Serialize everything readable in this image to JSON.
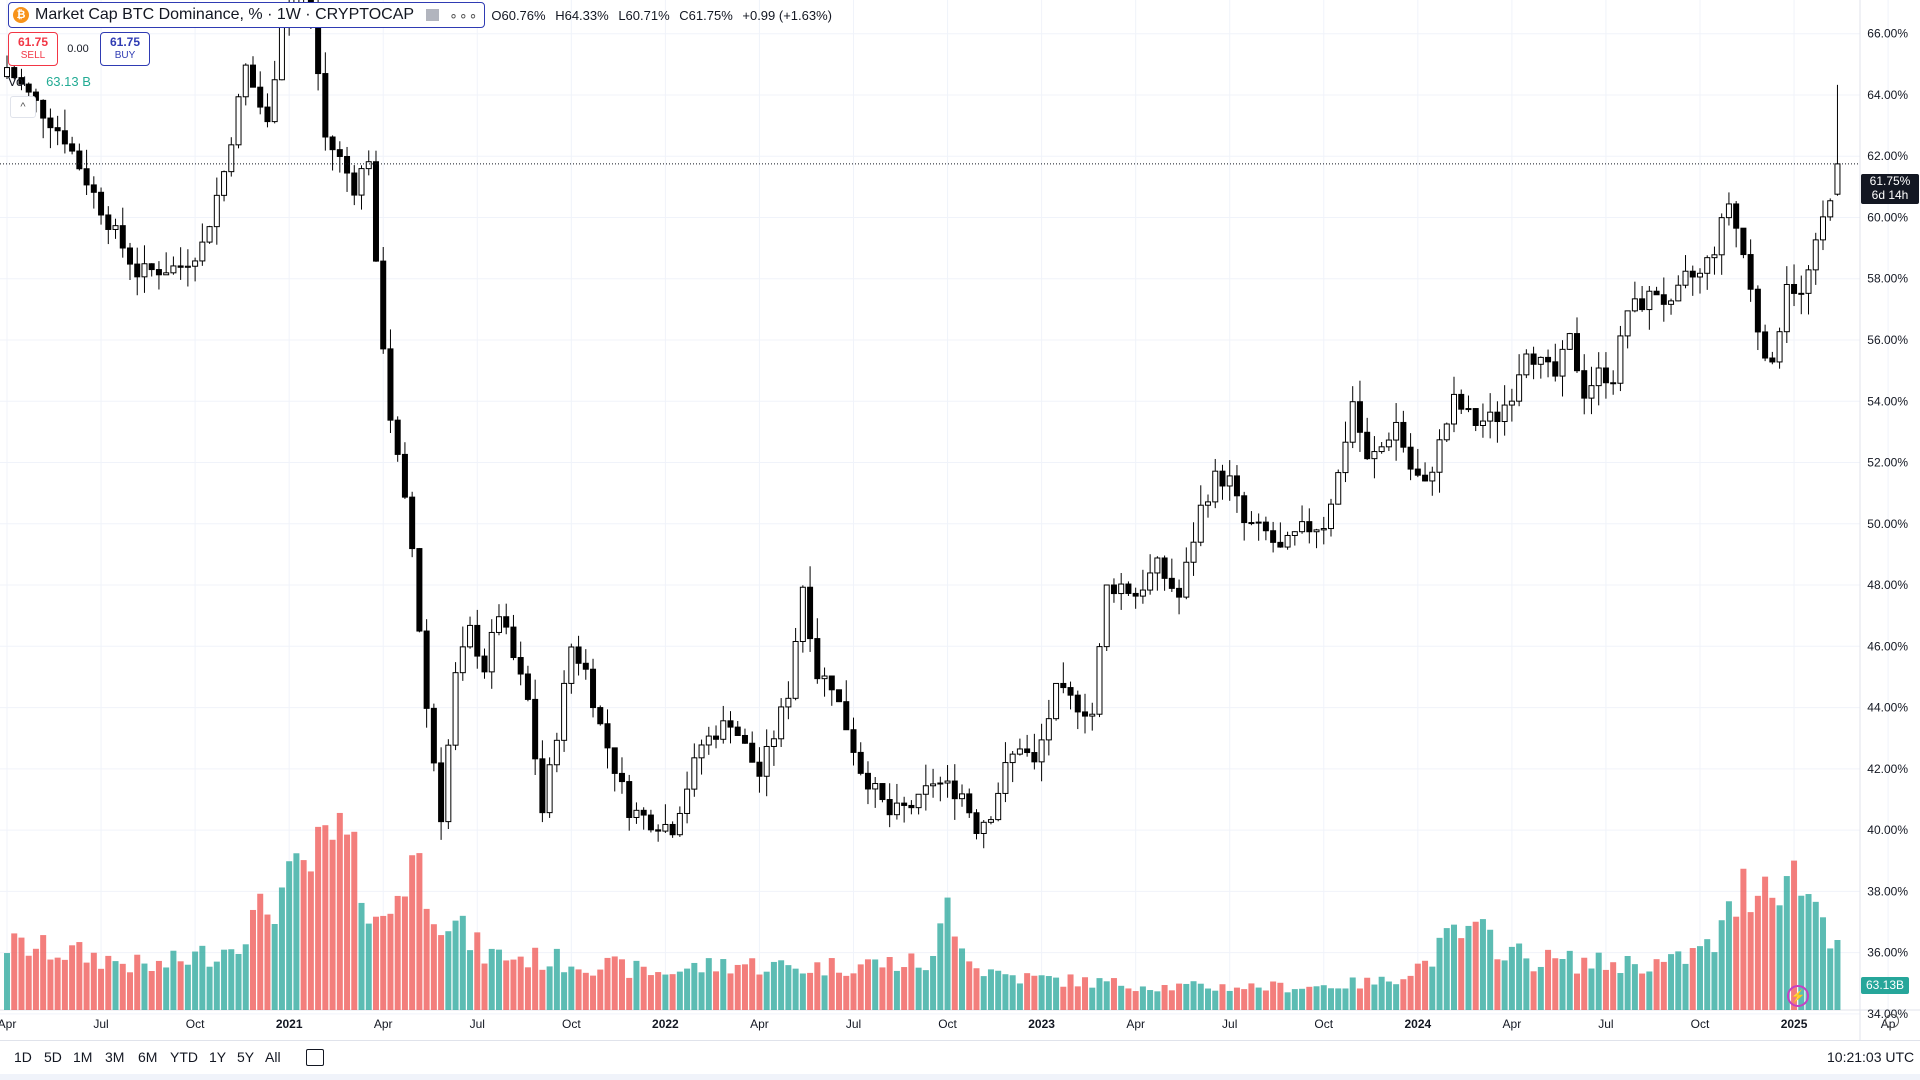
{
  "legend": {
    "coin_symbol": "₿",
    "title": "Market Cap BTC Dominance, % · 1W · CRYPTOCAP",
    "more": "∘∘∘",
    "open": "60.76%",
    "high": "64.33%",
    "low": "60.71%",
    "close": "61.75%",
    "change": "+0.99 (+1.63%)"
  },
  "trade": {
    "sell_price": "61.75",
    "sell_label": "SELL",
    "spread": "0.00",
    "buy_price": "61.75",
    "buy_label": "BUY"
  },
  "volume_legend": {
    "label": "Vol",
    "value": "63.13 B"
  },
  "collapse_icon": "chevron-up-icon",
  "last_price_tag": {
    "value": "61.75%",
    "countdown": "6d 14h",
    "overlapped_tick": "62.00%"
  },
  "volume_tag": "63.13B",
  "range_buttons": [
    "1D",
    "5D",
    "1M",
    "3M",
    "6M",
    "YTD",
    "1Y",
    "5Y",
    "All"
  ],
  "clock": "10:21:03 UTC",
  "colors": {
    "up_volume": "#26a69a",
    "down_volume": "#ef5350",
    "candle_up": "#ffffff",
    "candle_down": "#000000",
    "accent": "#2962ff"
  },
  "chart_data": {
    "type": "candlestick",
    "title": "Market Cap BTC Dominance, %",
    "interval": "1W",
    "source": "CRYPTOCAP",
    "y_axis": {
      "ticks": [
        "34.00%",
        "36.00%",
        "38.00%",
        "40.00%",
        "42.00%",
        "44.00%",
        "46.00%",
        "48.00%",
        "50.00%",
        "52.00%",
        "54.00%",
        "56.00%",
        "58.00%",
        "60.00%",
        "62.00%",
        "64.00%",
        "66.00%"
      ],
      "range": [
        33.8,
        67.1
      ],
      "position": "right"
    },
    "x_axis": {
      "ticks": [
        {
          "label": "Apr",
          "week": 0
        },
        {
          "label": "Jul",
          "week": 13
        },
        {
          "label": "Oct",
          "week": 26
        },
        {
          "label": "2021",
          "week": 39,
          "bold": true
        },
        {
          "label": "Apr",
          "week": 52
        },
        {
          "label": "Jul",
          "week": 65
        },
        {
          "label": "Oct",
          "week": 78
        },
        {
          "label": "2022",
          "week": 91,
          "bold": true
        },
        {
          "label": "Apr",
          "week": 104
        },
        {
          "label": "Jul",
          "week": 117
        },
        {
          "label": "Oct",
          "week": 130
        },
        {
          "label": "2023",
          "week": 143,
          "bold": true
        },
        {
          "label": "Apr",
          "week": 156
        },
        {
          "label": "Jul",
          "week": 169
        },
        {
          "label": "Oct",
          "week": 182
        },
        {
          "label": "2024",
          "week": 195,
          "bold": true
        },
        {
          "label": "Apr",
          "week": 208
        },
        {
          "label": "Jul",
          "week": 221
        },
        {
          "label": "Oct",
          "week": 234
        },
        {
          "label": "2025",
          "week": 247,
          "bold": true
        },
        {
          "label": "Ap",
          "week": 260
        }
      ]
    },
    "close_path": [
      [
        0,
        64.9
      ],
      [
        3,
        64.0
      ],
      [
        8,
        62.6
      ],
      [
        13,
        60.3
      ],
      [
        18,
        58.2
      ],
      [
        24,
        58.4
      ],
      [
        27,
        59.1
      ],
      [
        30,
        61.5
      ],
      [
        33,
        64.9
      ],
      [
        36,
        63.0
      ],
      [
        38,
        66.5
      ],
      [
        40,
        67.5
      ],
      [
        42,
        66.8
      ],
      [
        44,
        62.6
      ],
      [
        46,
        61.9
      ],
      [
        48,
        61.0
      ],
      [
        50,
        62.0
      ],
      [
        51,
        58.3
      ],
      [
        53,
        53.5
      ],
      [
        56,
        49.2
      ],
      [
        58,
        44.0
      ],
      [
        60,
        40.5
      ],
      [
        62,
        45.0
      ],
      [
        64,
        46.5
      ],
      [
        66,
        45.3
      ],
      [
        68,
        47.1
      ],
      [
        70,
        45.6
      ],
      [
        72,
        44.2
      ],
      [
        74,
        40.6
      ],
      [
        76,
        43.2
      ],
      [
        78,
        46.0
      ],
      [
        80,
        45.2
      ],
      [
        82,
        43.4
      ],
      [
        86,
        40.7
      ],
      [
        89,
        40.3
      ],
      [
        92,
        40.1
      ],
      [
        96,
        42.8
      ],
      [
        100,
        43.6
      ],
      [
        104,
        41.8
      ],
      [
        106,
        43.1
      ],
      [
        108,
        44.5
      ],
      [
        110,
        48.0
      ],
      [
        112,
        45.1
      ],
      [
        114,
        44.8
      ],
      [
        118,
        42.0
      ],
      [
        122,
        40.5
      ],
      [
        126,
        40.9
      ],
      [
        128,
        41.6
      ],
      [
        132,
        41.2
      ],
      [
        134,
        40.1
      ],
      [
        136,
        40.6
      ],
      [
        138,
        42.0
      ],
      [
        140,
        42.8
      ],
      [
        142,
        42.1
      ],
      [
        145,
        44.5
      ],
      [
        148,
        44.1
      ],
      [
        150,
        43.8
      ],
      [
        152,
        47.9
      ],
      [
        154,
        48.0
      ],
      [
        156,
        47.7
      ],
      [
        159,
        48.6
      ],
      [
        162,
        47.6
      ],
      [
        165,
        50.5
      ],
      [
        167,
        51.5
      ],
      [
        169,
        51.4
      ],
      [
        171,
        50.0
      ],
      [
        174,
        49.7
      ],
      [
        176,
        49.1
      ],
      [
        179,
        49.8
      ],
      [
        182,
        50.0
      ],
      [
        184,
        51.6
      ],
      [
        186,
        54.0
      ],
      [
        188,
        52.0
      ],
      [
        190,
        52.5
      ],
      [
        192,
        53.3
      ],
      [
        194,
        51.8
      ],
      [
        196,
        51.2
      ],
      [
        198,
        52.6
      ],
      [
        200,
        54.0
      ],
      [
        203,
        53.3
      ],
      [
        206,
        53.5
      ],
      [
        208,
        54.3
      ],
      [
        210,
        55.8
      ],
      [
        212,
        55.2
      ],
      [
        214,
        54.8
      ],
      [
        216,
        56.0
      ],
      [
        218,
        54.3
      ],
      [
        220,
        54.9
      ],
      [
        222,
        54.8
      ],
      [
        224,
        57.0
      ],
      [
        226,
        57.2
      ],
      [
        228,
        57.6
      ],
      [
        230,
        57.0
      ],
      [
        232,
        58.0
      ],
      [
        234,
        58.1
      ],
      [
        236,
        59.0
      ],
      [
        238,
        60.5
      ],
      [
        240,
        58.8
      ],
      [
        242,
        56.4
      ],
      [
        244,
        55.0
      ],
      [
        246,
        58.0
      ],
      [
        248,
        57.4
      ],
      [
        250,
        59.0
      ],
      [
        252,
        60.8
      ],
      [
        253,
        61.75
      ]
    ],
    "last": {
      "open": 60.76,
      "high": 64.33,
      "low": 60.71,
      "close": 61.75,
      "change": 0.99,
      "change_pct": 1.63
    },
    "volume": {
      "unit": "B",
      "last": 63.13,
      "height_scale_note": "bars drawn proportionally; peak bar ~2021 Apr",
      "profile": [
        [
          0,
          14
        ],
        [
          10,
          12
        ],
        [
          20,
          9
        ],
        [
          30,
          13
        ],
        [
          40,
          28
        ],
        [
          46,
          37
        ],
        [
          52,
          18
        ],
        [
          56,
          33
        ],
        [
          60,
          21
        ],
        [
          66,
          12
        ],
        [
          80,
          10
        ],
        [
          90,
          8
        ],
        [
          100,
          10
        ],
        [
          110,
          9
        ],
        [
          120,
          10
        ],
        [
          128,
          10
        ],
        [
          130,
          23
        ],
        [
          134,
          9
        ],
        [
          140,
          7
        ],
        [
          150,
          6
        ],
        [
          160,
          5
        ],
        [
          170,
          5
        ],
        [
          180,
          5
        ],
        [
          190,
          6
        ],
        [
          196,
          10
        ],
        [
          200,
          16
        ],
        [
          204,
          16
        ],
        [
          210,
          11
        ],
        [
          220,
          10
        ],
        [
          230,
          10
        ],
        [
          236,
          14
        ],
        [
          240,
          26
        ],
        [
          244,
          29
        ],
        [
          248,
          28
        ],
        [
          252,
          17
        ],
        [
          253,
          15
        ]
      ]
    }
  }
}
